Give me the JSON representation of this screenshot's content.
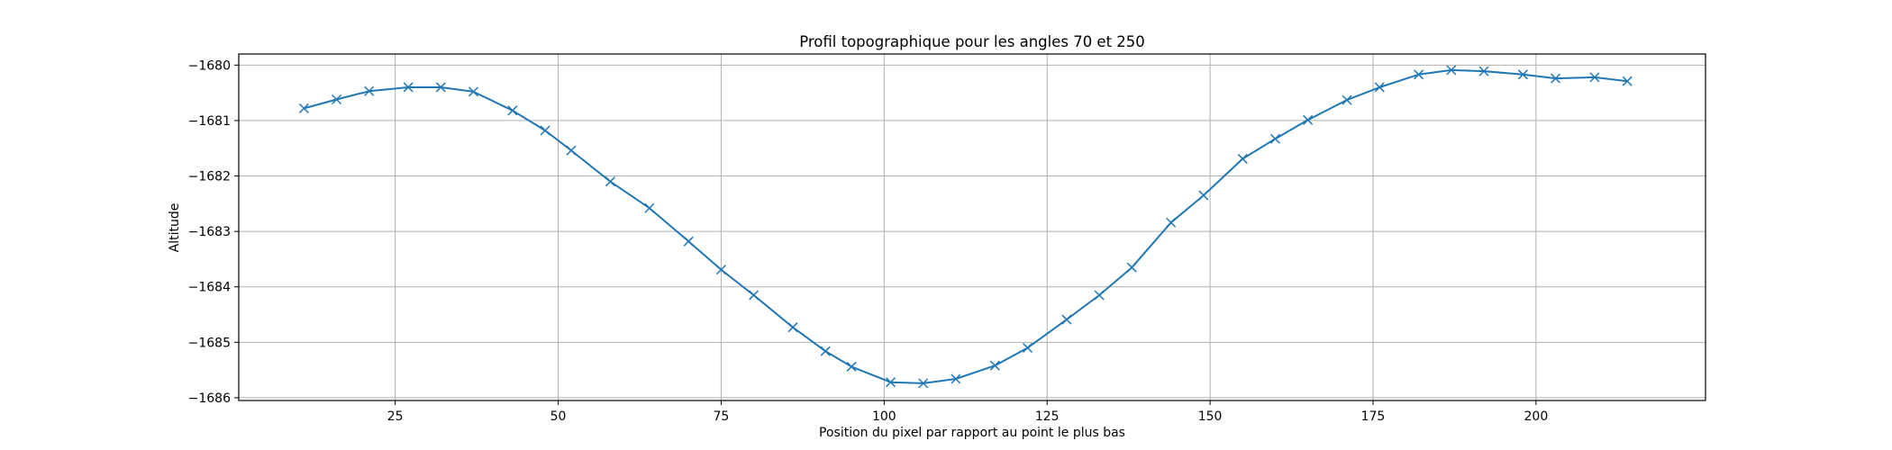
{
  "chart_data": {
    "type": "line",
    "title": "Profil topographique pour les angles 70 et 250",
    "xlabel": "Position du pixel par rapport au point le plus bas",
    "ylabel": "Altitude",
    "xlim": [
      1,
      226
    ],
    "ylim": [
      -1686.05,
      -1679.8
    ],
    "xticks": [
      25,
      50,
      75,
      100,
      125,
      150,
      175,
      200
    ],
    "yticks": [
      -1680,
      -1681,
      -1682,
      -1683,
      -1684,
      -1685,
      -1686
    ],
    "grid": true,
    "marker": "x",
    "color": "#1f77b4",
    "series": [
      {
        "x": [
          11,
          16,
          21,
          27,
          32,
          37,
          43,
          48,
          52,
          58,
          64,
          70,
          75,
          80,
          86,
          91,
          95,
          101,
          106,
          111,
          117,
          122,
          128,
          133,
          138,
          144,
          149,
          155,
          160,
          165,
          171,
          176,
          182,
          187,
          192,
          198,
          203,
          209,
          214
        ],
        "y": [
          -1680.78,
          -1680.62,
          -1680.47,
          -1680.4,
          -1680.4,
          -1680.48,
          -1680.82,
          -1681.18,
          -1681.54,
          -1682.1,
          -1682.58,
          -1683.18,
          -1683.69,
          -1684.15,
          -1684.73,
          -1685.16,
          -1685.44,
          -1685.72,
          -1685.74,
          -1685.66,
          -1685.42,
          -1685.1,
          -1684.59,
          -1684.15,
          -1683.65,
          -1682.84,
          -1682.35,
          -1681.69,
          -1681.33,
          -1680.99,
          -1680.63,
          -1680.4,
          -1680.17,
          -1680.09,
          -1680.11,
          -1680.17,
          -1680.24,
          -1680.22,
          -1680.29
        ]
      }
    ]
  }
}
